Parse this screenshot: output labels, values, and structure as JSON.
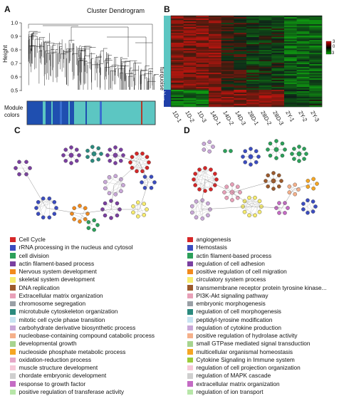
{
  "panels": {
    "A": {
      "letter": "A",
      "title": "Cluster Dendrogram",
      "ylabel": "Height",
      "yticks": [
        "1.0",
        "0.9",
        "0.8",
        "0.7",
        "0.6",
        "0.5"
      ],
      "module_label_line1": "Module",
      "module_label_line2": "colors"
    },
    "B": {
      "letter": "B",
      "modules": [
        {
          "name": "turquoise",
          "color": "#5cc6c2"
        },
        {
          "name": "blue",
          "color": "#1f3fa8"
        }
      ],
      "samples": [
        "1D-1",
        "1D-2",
        "1D-3",
        "14D-1",
        "14D-2",
        "14D-3",
        "28D-1",
        "28D-2",
        "28D-3",
        "2Y-1",
        "2Y-2",
        "2Y-3"
      ],
      "colorbar_ticks": [
        "3",
        "0",
        "-3"
      ]
    },
    "C": {
      "letter": "C"
    },
    "D": {
      "letter": "D"
    }
  },
  "legend_C": [
    {
      "label": "Cell Cycle",
      "color": "#d62728"
    },
    {
      "label": "rRNA processing in the nucleus and cytosol",
      "color": "#3b4cc0"
    },
    {
      "label": "cell division",
      "color": "#2ca05a"
    },
    {
      "label": "actin filament-based process",
      "color": "#7a3fa0"
    },
    {
      "label": "Nervous system development",
      "color": "#f28a1c"
    },
    {
      "label": "skeletal system development",
      "color": "#f7ec6e"
    },
    {
      "label": "DNA replication",
      "color": "#9c5a2c"
    },
    {
      "label": "Extracellular matrix organization",
      "color": "#e8a0b8"
    },
    {
      "label": "chromosome segregation",
      "color": "#9aa0a6"
    },
    {
      "label": "microtubule cytoskeleton organization",
      "color": "#2b8a7e"
    },
    {
      "label": "mitotic cell cycle phase transition",
      "color": "#c7e3f2"
    },
    {
      "label": "carbohydrate derivative biosynthetic process",
      "color": "#c9a8d8"
    },
    {
      "label": "nucleobase-containing compound catabolic process",
      "color": "#f5b08a"
    },
    {
      "label": "developmental growth",
      "color": "#a7d48f"
    },
    {
      "label": "nucleoside phosphate metabolic process",
      "color": "#f5a623"
    },
    {
      "label": "oxidation-reduction process",
      "color": "#e5a8c8"
    },
    {
      "label": "muscle structure development",
      "color": "#f6c8d8"
    },
    {
      "label": "chordate embryonic development",
      "color": "#cfcfcf"
    },
    {
      "label": "response to growth factor",
      "color": "#c46bc4"
    },
    {
      "label": "positive regulation of transferase activity",
      "color": "#b7e6a8"
    }
  ],
  "legend_D": [
    {
      "label": "angiogenesis",
      "color": "#d62728"
    },
    {
      "label": "Hemostasis",
      "color": "#3b4cc0"
    },
    {
      "label": "actin filament-based process",
      "color": "#2ca05a"
    },
    {
      "label": "regulation of cell adhesion",
      "color": "#7a3fa0"
    },
    {
      "label": "positive regulation of cell migration",
      "color": "#f28a1c"
    },
    {
      "label": "circulatory system process",
      "color": "#f7ec6e"
    },
    {
      "label": "transmembrane receptor protein tyrosine kinase...",
      "color": "#9c5a2c"
    },
    {
      "label": "PI3K-Akt signaling pathway",
      "color": "#e8a0b8"
    },
    {
      "label": "embryonic morphogenesis",
      "color": "#9aa0a6"
    },
    {
      "label": "regulation of cell morphogenesis",
      "color": "#2b8a7e"
    },
    {
      "label": "peptidyl-tyrosine modification",
      "color": "#c7e3f2"
    },
    {
      "label": "regulation of cytokine production",
      "color": "#c9a8d8"
    },
    {
      "label": "positive regulation of hydrolase activity",
      "color": "#f5b08a"
    },
    {
      "label": "small GTPase mediated signal transduction",
      "color": "#a7d48f"
    },
    {
      "label": "multicellular organismal homeostasis",
      "color": "#f5a623"
    },
    {
      "label": "Cytokine Signaling in Immune system",
      "color": "#9ccc3a"
    },
    {
      "label": "regulation of cell projection organization",
      "color": "#f6c8d8"
    },
    {
      "label": "regulation of MAPK cascade",
      "color": "#cfcfcf"
    },
    {
      "label": "extracellular matrix organization",
      "color": "#c46bc4"
    },
    {
      "label": "regulation of ion transport",
      "color": "#b7e6a8"
    }
  ]
}
